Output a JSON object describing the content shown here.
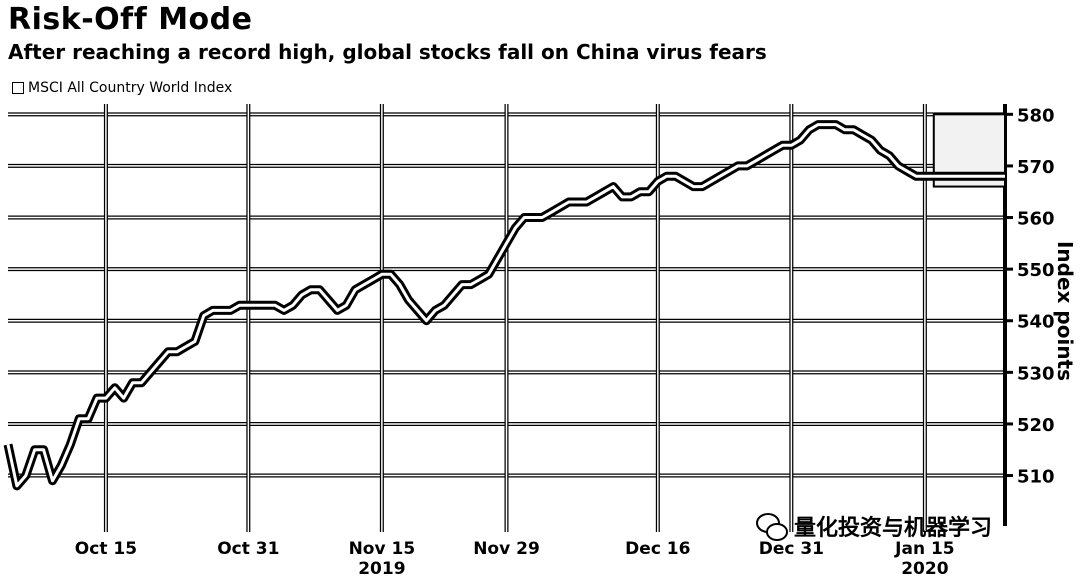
{
  "chart_data": {
    "type": "line",
    "title": "Risk-Off Mode",
    "subtitle": "After reaching a record high, global stocks fall on China virus fears",
    "ylabel": "Index points",
    "xlabel": "",
    "ylim": [
      501,
      582
    ],
    "y_ticks": [
      510,
      520,
      530,
      540,
      550,
      560,
      570,
      580
    ],
    "x_ticks": [
      {
        "label": "Oct 15",
        "sub": "",
        "x": 11
      },
      {
        "label": "Oct 31",
        "sub": "",
        "x": 27
      },
      {
        "label": "Nov 15",
        "sub": "2019",
        "x": 42
      },
      {
        "label": "Nov 29",
        "sub": "",
        "x": 56
      },
      {
        "label": "Dec 16",
        "sub": "",
        "x": 73
      },
      {
        "label": "Dec 31",
        "sub": "",
        "x": 88
      },
      {
        "label": "Jan 15",
        "sub": "2020",
        "x": 103
      }
    ],
    "x_unit": "days from Oct 4, 2019",
    "legend": {
      "placement": "top-left"
    },
    "grid": true,
    "series": [
      {
        "name": "MSCI All Country World Index",
        "x": [
          0,
          1,
          2,
          3,
          4,
          5,
          6,
          7,
          8,
          9,
          10,
          11,
          12,
          13,
          14,
          15,
          16,
          17,
          18,
          19,
          20,
          21,
          22,
          23,
          24,
          25,
          26,
          27,
          28,
          29,
          30,
          31,
          32,
          33,
          34,
          35,
          36,
          37,
          38,
          39,
          40,
          41,
          42,
          43,
          44,
          45,
          46,
          47,
          48,
          49,
          50,
          51,
          52,
          53,
          54,
          55,
          56,
          57,
          58,
          59,
          60,
          61,
          62,
          63,
          64,
          65,
          66,
          67,
          68,
          69,
          70,
          71,
          72,
          73,
          74,
          75,
          76,
          77,
          78,
          79,
          80,
          81,
          82,
          83,
          84,
          85,
          86,
          87,
          88,
          89,
          90,
          91,
          92,
          93,
          94,
          95,
          96,
          97,
          98,
          99,
          100,
          101,
          102,
          103,
          104,
          105,
          106,
          107,
          108,
          109,
          110,
          111,
          112
        ],
        "values": [
          516,
          508,
          510,
          515,
          515,
          509,
          512,
          516,
          521,
          521,
          525,
          525,
          527,
          525,
          528,
          528,
          530,
          532,
          534,
          534,
          535,
          536,
          541,
          542,
          542,
          542,
          543,
          543,
          543,
          543,
          543,
          542,
          543,
          545,
          546,
          546,
          544,
          542,
          543,
          546,
          547,
          548,
          549,
          549,
          547,
          544,
          542,
          540,
          542,
          543,
          545,
          547,
          547,
          548,
          549,
          552,
          555,
          558,
          560,
          560,
          560,
          561,
          562,
          563,
          563,
          563,
          564,
          565,
          566,
          564,
          564,
          565,
          565,
          567,
          568,
          568,
          567,
          566,
          566,
          567,
          568,
          569,
          570,
          570,
          571,
          572,
          573,
          574,
          574,
          575,
          577,
          578,
          578,
          578,
          577,
          577,
          576,
          575,
          573,
          572,
          570,
          569,
          568,
          568,
          568,
          568,
          568,
          568,
          568,
          568,
          568,
          568,
          568
        ],
        "color": "#000000"
      }
    ],
    "annotations": [
      {
        "label": "",
        "x_start": 104,
        "x_end": 119,
        "y_min": 566,
        "y_max": 580
      }
    ],
    "watermark": "量化投资与机器学习"
  }
}
